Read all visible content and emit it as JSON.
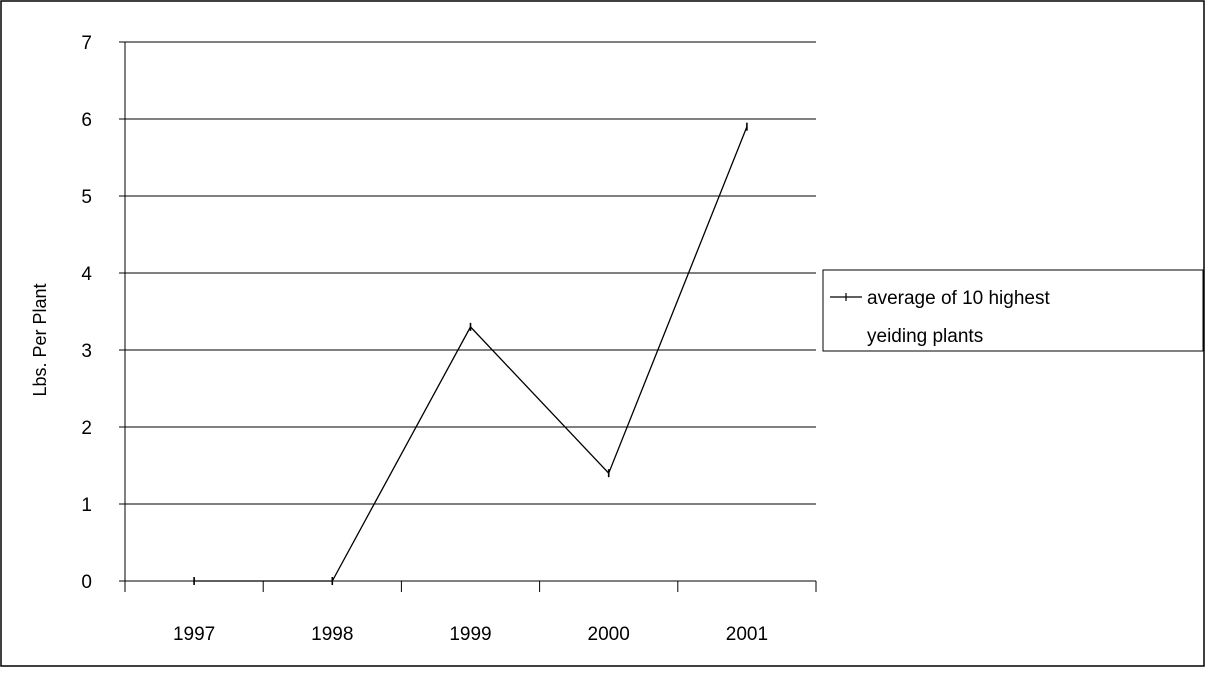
{
  "chart_data": {
    "type": "line",
    "title": "",
    "xlabel": "",
    "ylabel": "Lbs. Per Plant",
    "categories": [
      "1997",
      "1998",
      "1999",
      "2000",
      "2001"
    ],
    "ylim": [
      0,
      7
    ],
    "yticks": [
      "0",
      "1",
      "2",
      "3",
      "4",
      "5",
      "6",
      "7"
    ],
    "grid": true,
    "legend_position": "right",
    "series": [
      {
        "name": "average of 10 highest yeiding plants",
        "values": [
          0,
          0,
          3.3,
          1.4,
          5.9
        ],
        "color": "#000000",
        "marker": "dash"
      }
    ]
  },
  "legend": {
    "line1": "average of 10 highest",
    "line2": "yeiding plants"
  }
}
